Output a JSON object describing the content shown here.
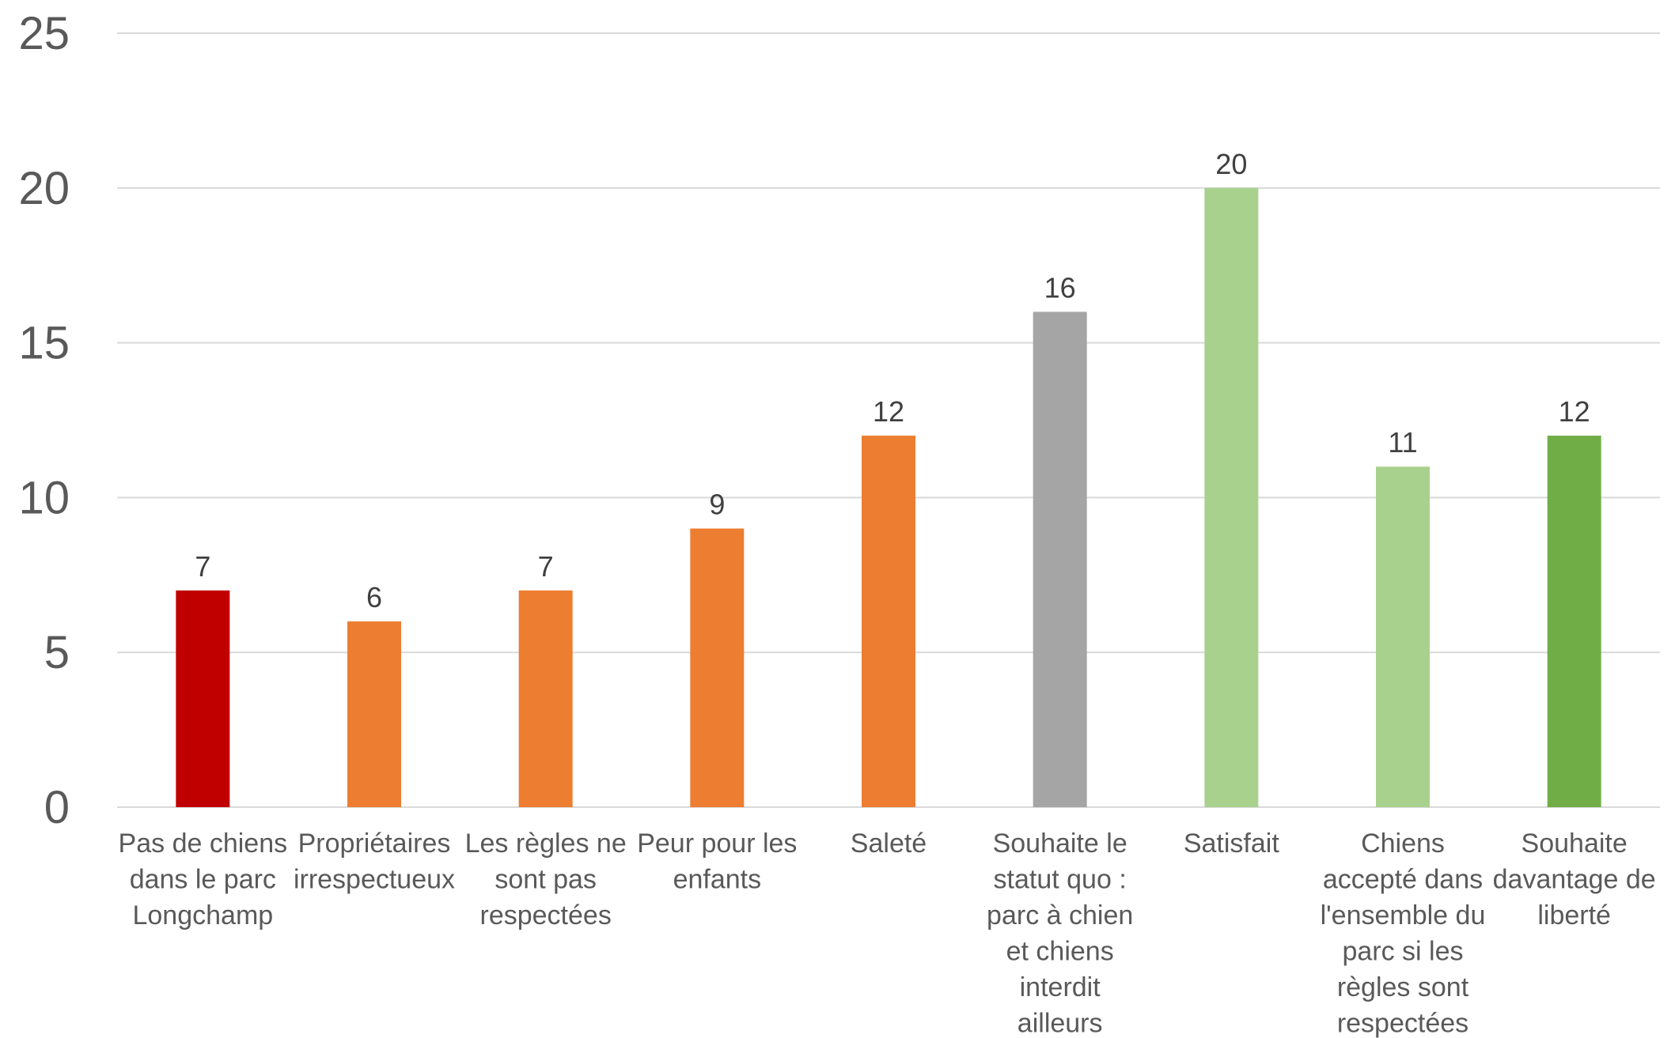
{
  "chart_data": {
    "type": "bar",
    "title": "",
    "xlabel": "",
    "ylabel": "",
    "ylim": [
      0,
      25
    ],
    "yticks": [
      0,
      5,
      10,
      15,
      20,
      25
    ],
    "grid": true,
    "legend": "none",
    "categories": [
      "Pas de chiens dans le parc Longchamp",
      "Propriétaires irrespectueux",
      "Les règles ne sont pas respectées",
      "Peur pour les enfants",
      "Saleté",
      "Souhaite le statut quo : parc à chien et chiens interdit ailleurs",
      "Satisfait",
      "Chiens accepté dans l'ensemble du parc si les règles sont respectées",
      "Souhaite davantage de liberté"
    ],
    "category_lines": [
      [
        "Pas de chiens",
        "dans le parc",
        "Longchamp"
      ],
      [
        "Propriétaires",
        "irrespectueux"
      ],
      [
        "Les règles ne",
        "sont pas",
        "respectées"
      ],
      [
        "Peur pour les",
        "enfants"
      ],
      [
        "Saleté"
      ],
      [
        "Souhaite le",
        "statut quo :",
        "parc à chien",
        "et chiens",
        "interdit",
        "ailleurs"
      ],
      [
        "Satisfait"
      ],
      [
        "Chiens",
        "accepté dans",
        "l'ensemble du",
        "parc si les",
        "règles sont",
        "respectées"
      ],
      [
        "Souhaite",
        "davantage de",
        "liberté"
      ]
    ],
    "values": [
      7,
      6,
      7,
      9,
      12,
      16,
      20,
      11,
      12
    ],
    "colors": [
      "#c00000",
      "#ed7d31",
      "#ed7d31",
      "#ed7d31",
      "#ed7d31",
      "#a5a5a5",
      "#a9d18e",
      "#a9d18e",
      "#70ad47"
    ]
  }
}
